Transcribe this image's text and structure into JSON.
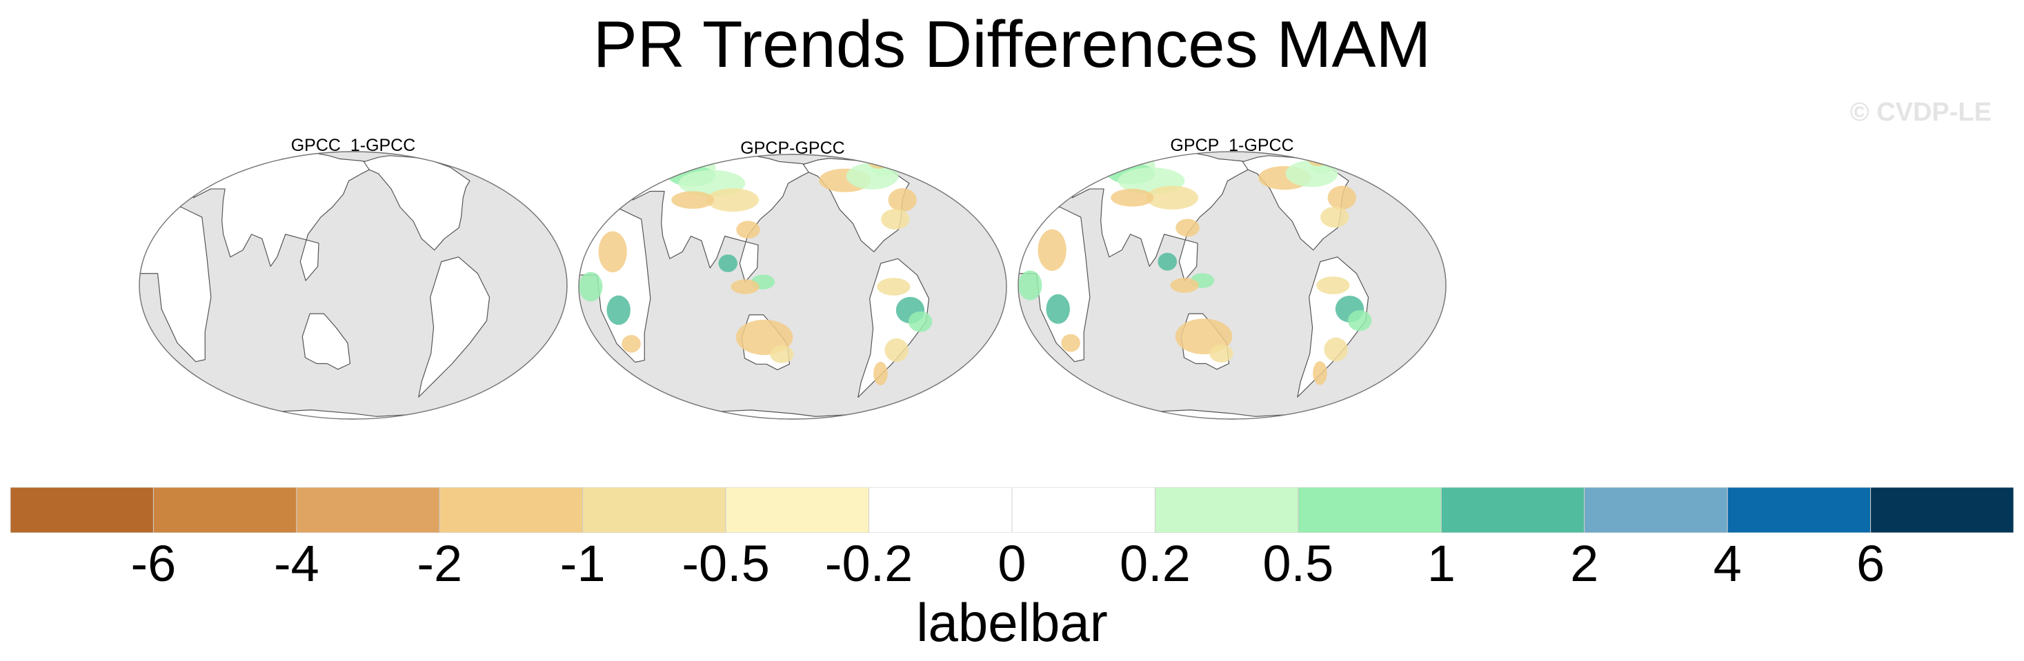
{
  "chart_data": {
    "type": "heatmap",
    "title": "PR Trends Differences MAM",
    "watermark": "© CVDP-LE",
    "panels": [
      {
        "name": "GPCC_1-GPCC",
        "has_anomalies": false
      },
      {
        "name": "GPCP-GPCC",
        "has_anomalies": true
      },
      {
        "name": "GPCP_1-GPCC",
        "has_anomalies": true
      }
    ],
    "colorbar": {
      "label": "labelbar",
      "levels": [
        "-6",
        "-4",
        "-2",
        "-1",
        "-0.5",
        "-0.2",
        "0",
        "0.2",
        "0.5",
        "1",
        "2",
        "4",
        "6"
      ],
      "colors": [
        "#b5692a",
        "#cc853e",
        "#e0a462",
        "#f3cd87",
        "#f3e09e",
        "#fdf3c1",
        "#ffffff",
        "#ffffff",
        "#c9f9c9",
        "#98edb0",
        "#52bc9e",
        "#70a8c8",
        "#0b6aaa",
        "#043657"
      ]
    },
    "map_colors": {
      "ocean": "#e4e4e4",
      "land": "#ffffff",
      "coast": "#555555"
    }
  }
}
